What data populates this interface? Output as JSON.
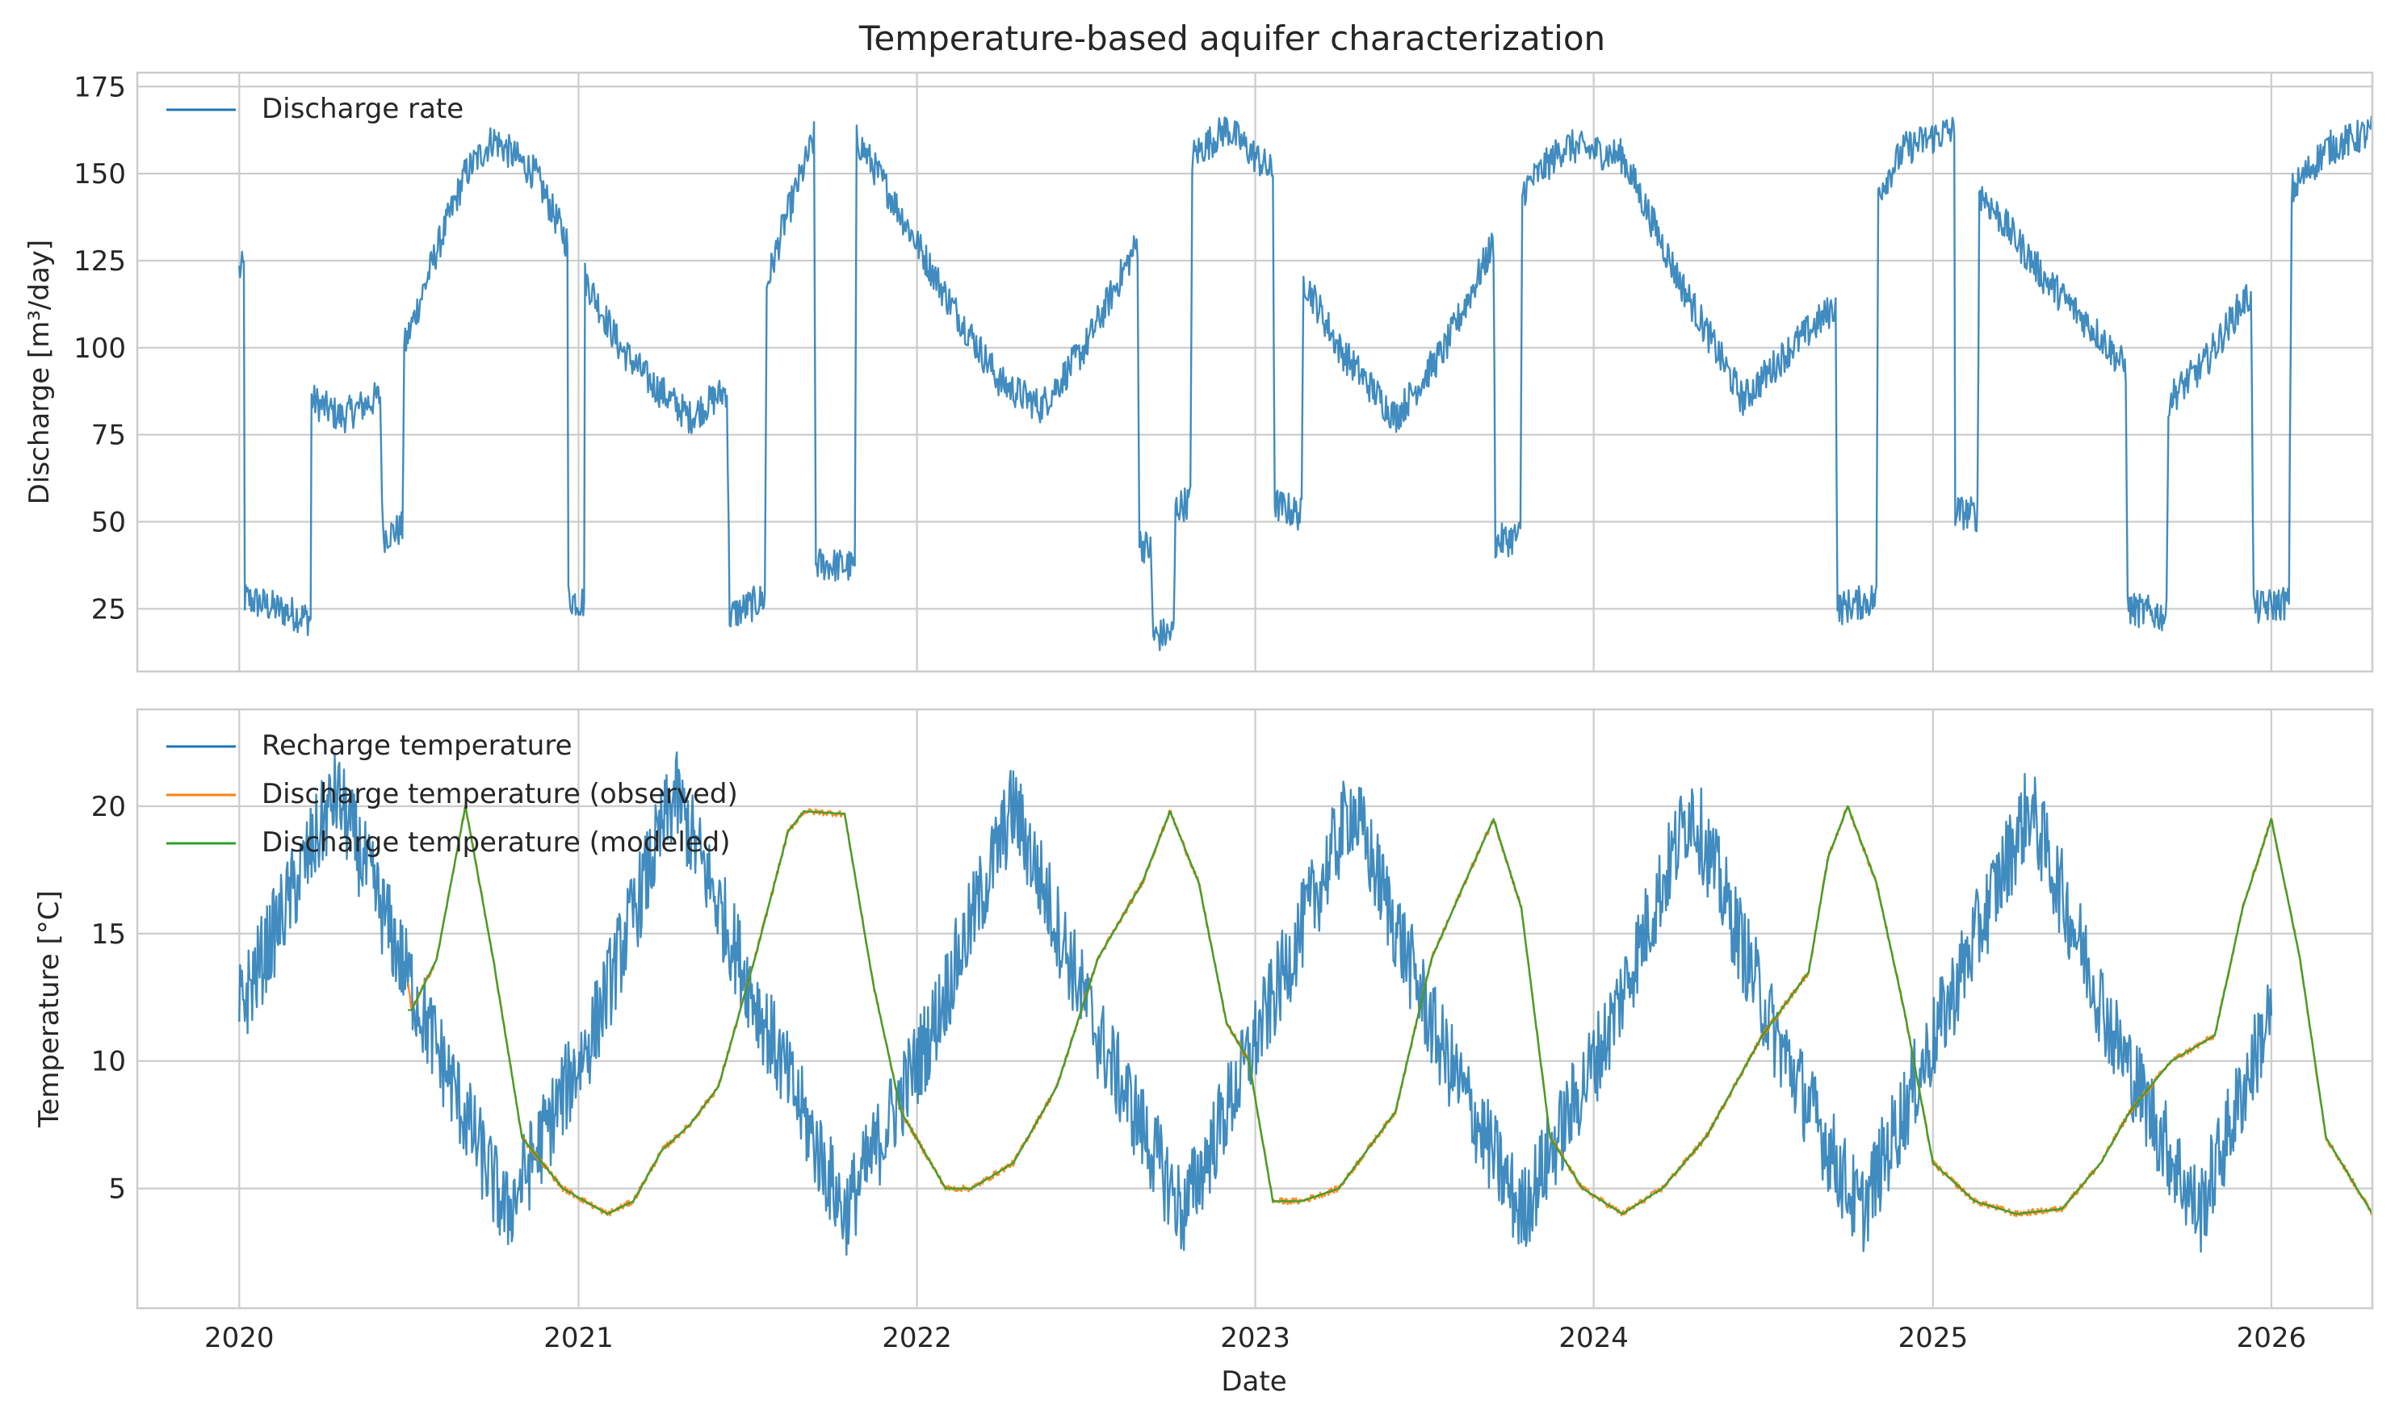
{
  "chart_data": [
    {
      "type": "line",
      "title": "Temperature-based aquifer characterization",
      "xlabel": "",
      "ylabel": "Discharge [m³/day]",
      "x_type": "date",
      "xlim": [
        "2019-09-13",
        "2026-04-20"
      ],
      "ylim": [
        7,
        179
      ],
      "xticks": [
        "2020-01-01",
        "2021-01-01",
        "2022-01-01",
        "2023-01-01",
        "2024-01-01",
        "2025-01-01",
        "2026-01-01"
      ],
      "xtick_labels": [
        "2020",
        "2021",
        "2022",
        "2023",
        "2024",
        "2025",
        "2026"
      ],
      "yticks": [
        25,
        50,
        75,
        100,
        125,
        150,
        175
      ],
      "grid": true,
      "legend_position": "top-left",
      "series": [
        {
          "name": "Discharge rate",
          "color": "#1f77b4",
          "noise": 5,
          "points": [
            [
              "2020-01-01",
              122
            ],
            [
              "2020-01-06",
              123
            ],
            [
              "2020-01-07",
              28
            ],
            [
              "2020-03-18",
              22
            ],
            [
              "2020-03-19",
              85
            ],
            [
              "2020-04-20",
              80
            ],
            [
              "2020-06-01",
              86
            ],
            [
              "2020-06-04",
              46
            ],
            [
              "2020-06-25",
              48
            ],
            [
              "2020-06-27",
              100
            ],
            [
              "2020-08-01",
              128
            ],
            [
              "2020-09-01",
              150
            ],
            [
              "2020-10-01",
              160
            ],
            [
              "2020-11-15",
              150
            ],
            [
              "2020-12-20",
              130
            ],
            [
              "2020-12-21",
              28
            ],
            [
              "2021-01-07",
              27
            ],
            [
              "2021-01-08",
              120
            ],
            [
              "2021-02-15",
              100
            ],
            [
              "2021-03-20",
              90
            ],
            [
              "2021-05-01",
              80
            ],
            [
              "2021-06-10",
              88
            ],
            [
              "2021-06-13",
              23
            ],
            [
              "2021-07-21",
              28
            ],
            [
              "2021-07-23",
              118
            ],
            [
              "2021-08-10",
              135
            ],
            [
              "2021-09-12",
              160
            ],
            [
              "2021-09-14",
              38
            ],
            [
              "2021-10-26",
              37
            ],
            [
              "2021-10-28",
              160
            ],
            [
              "2021-12-01",
              145
            ],
            [
              "2022-02-01",
              115
            ],
            [
              "2022-04-01",
              90
            ],
            [
              "2022-05-15",
              83
            ],
            [
              "2022-07-01",
              100
            ],
            [
              "2022-08-27",
              130
            ],
            [
              "2022-08-29",
              44
            ],
            [
              "2022-09-10",
              42
            ],
            [
              "2022-09-13",
              17
            ],
            [
              "2022-10-05",
              18
            ],
            [
              "2022-10-07",
              54
            ],
            [
              "2022-10-23",
              56
            ],
            [
              "2022-10-25",
              155
            ],
            [
              "2022-12-01",
              163
            ],
            [
              "2023-01-20",
              150
            ],
            [
              "2023-01-22",
              55
            ],
            [
              "2023-02-20",
              52
            ],
            [
              "2023-02-22",
              120
            ],
            [
              "2023-04-01",
              100
            ],
            [
              "2023-06-01",
              80
            ],
            [
              "2023-07-25",
              100
            ],
            [
              "2023-09-15",
              130
            ],
            [
              "2023-09-17",
              44
            ],
            [
              "2023-10-14",
              46
            ],
            [
              "2023-10-16",
              145
            ],
            [
              "2023-12-01",
              158
            ],
            [
              "2024-02-01",
              155
            ],
            [
              "2024-04-01",
              120
            ],
            [
              "2024-06-10",
              85
            ],
            [
              "2024-08-01",
              100
            ],
            [
              "2024-09-18",
              112
            ],
            [
              "2024-09-20",
              25
            ],
            [
              "2024-11-01",
              28
            ],
            [
              "2024-11-03",
              145
            ],
            [
              "2024-12-01",
              157
            ],
            [
              "2025-01-15",
              162
            ],
            [
              "2025-01-24",
              162
            ],
            [
              "2025-01-25",
              53
            ],
            [
              "2025-02-18",
              52
            ],
            [
              "2025-02-20",
              145
            ],
            [
              "2025-03-15",
              137
            ],
            [
              "2025-05-01",
              120
            ],
            [
              "2025-07-01",
              103
            ],
            [
              "2025-07-28",
              94
            ],
            [
              "2025-07-30",
              25
            ],
            [
              "2025-09-10",
              23
            ],
            [
              "2025-09-12",
              85
            ],
            [
              "2025-10-20",
              95
            ],
            [
              "2025-12-01",
              113
            ],
            [
              "2025-12-10",
              115
            ],
            [
              "2025-12-12",
              56
            ],
            [
              "2025-12-13",
              25
            ],
            [
              "2026-01-20",
              27
            ],
            [
              "2026-01-23",
              145
            ],
            [
              "2026-03-01",
              157
            ],
            [
              "2026-04-20",
              162
            ]
          ]
        }
      ]
    },
    {
      "type": "line",
      "title": "",
      "xlabel": "Date",
      "ylabel": "Temperature [°C]",
      "x_type": "date",
      "xlim": [
        "2019-09-13",
        "2026-04-20"
      ],
      "ylim": [
        0.3,
        23.8
      ],
      "xticks": [
        "2020-01-01",
        "2021-01-01",
        "2022-01-01",
        "2023-01-01",
        "2024-01-01",
        "2025-01-01",
        "2026-01-01"
      ],
      "xtick_labels": [
        "2020",
        "2021",
        "2022",
        "2023",
        "2024",
        "2025",
        "2026"
      ],
      "yticks": [
        5,
        10,
        15,
        20
      ],
      "grid": true,
      "legend_position": "top-left",
      "series": [
        {
          "name": "Recharge temperature",
          "color": "#1f77b4",
          "noise": 1.8,
          "points": [
            [
              "2020-01-01",
              12
            ],
            [
              "2020-04-15",
              20.5
            ],
            [
              "2020-07-15",
              12
            ],
            [
              "2020-10-15",
              4
            ],
            [
              "2021-01-15",
              11
            ],
            [
              "2021-04-15",
              20.5
            ],
            [
              "2021-07-15",
              12
            ],
            [
              "2021-10-15",
              4
            ],
            [
              "2022-01-15",
              11
            ],
            [
              "2022-04-15",
              20
            ],
            [
              "2022-07-15",
              11
            ],
            [
              "2022-10-15",
              4
            ],
            [
              "2023-01-15",
              12
            ],
            [
              "2023-04-15",
              20
            ],
            [
              "2023-07-15",
              11
            ],
            [
              "2023-10-15",
              4
            ],
            [
              "2024-01-15",
              11
            ],
            [
              "2024-04-15",
              20
            ],
            [
              "2024-07-15",
              11
            ],
            [
              "2024-10-15",
              4
            ],
            [
              "2025-01-15",
              12
            ],
            [
              "2025-04-15",
              20
            ],
            [
              "2025-07-15",
              11
            ],
            [
              "2025-10-15",
              4
            ],
            [
              "2026-01-01",
              12
            ]
          ]
        },
        {
          "name": "Discharge temperature (observed)",
          "color": "#ff7f0e",
          "noise": 0.12,
          "points": [
            [
              "2020-07-01",
              13
            ],
            [
              "2020-07-05",
              12
            ],
            [
              "2020-08-01",
              14
            ],
            [
              "2020-09-01",
              20
            ],
            [
              "2020-10-01",
              14
            ],
            [
              "2020-11-01",
              7
            ],
            [
              "2020-12-15",
              5
            ],
            [
              "2021-02-01",
              4
            ],
            [
              "2021-03-01",
              4.5
            ],
            [
              "2021-04-01",
              6.5
            ],
            [
              "2021-05-01",
              7.5
            ],
            [
              "2021-06-01",
              9
            ],
            [
              "2021-07-10",
              14
            ],
            [
              "2021-08-15",
              19
            ],
            [
              "2021-09-01",
              19.8
            ],
            [
              "2021-10-15",
              19.7
            ],
            [
              "2021-11-15",
              13
            ],
            [
              "2021-12-15",
              8
            ],
            [
              "2022-02-01",
              5
            ],
            [
              "2022-03-01",
              5
            ],
            [
              "2022-04-15",
              6
            ],
            [
              "2022-06-01",
              9
            ],
            [
              "2022-07-15",
              14
            ],
            [
              "2022-09-01",
              17
            ],
            [
              "2022-10-01",
              19.8
            ],
            [
              "2022-11-01",
              17
            ],
            [
              "2022-12-01",
              11.5
            ],
            [
              "2022-12-25",
              10
            ],
            [
              "2023-01-20",
              4.5
            ],
            [
              "2023-02-20",
              4.5
            ],
            [
              "2023-04-01",
              5
            ],
            [
              "2023-06-01",
              8
            ],
            [
              "2023-07-10",
              14
            ],
            [
              "2023-08-15",
              17
            ],
            [
              "2023-09-15",
              19.5
            ],
            [
              "2023-10-15",
              16
            ],
            [
              "2023-11-15",
              7
            ],
            [
              "2023-12-20",
              5
            ],
            [
              "2024-02-01",
              4
            ],
            [
              "2024-03-15",
              5
            ],
            [
              "2024-05-01",
              7
            ],
            [
              "2024-07-01",
              11
            ],
            [
              "2024-08-20",
              13.5
            ],
            [
              "2024-09-10",
              18
            ],
            [
              "2024-10-01",
              20
            ],
            [
              "2024-11-01",
              17
            ],
            [
              "2024-12-01",
              12
            ],
            [
              "2025-01-01",
              6
            ],
            [
              "2025-02-15",
              4.5
            ],
            [
              "2025-04-01",
              4
            ],
            [
              "2025-05-20",
              4.2
            ],
            [
              "2025-07-01",
              6
            ],
            [
              "2025-08-01",
              8
            ],
            [
              "2025-09-15",
              10
            ],
            [
              "2025-11-01",
              11
            ],
            [
              "2025-12-01",
              16
            ],
            [
              "2026-01-01",
              19.5
            ],
            [
              "2026-02-01",
              14
            ],
            [
              "2026-03-01",
              7
            ],
            [
              "2026-04-20",
              4
            ]
          ]
        },
        {
          "name": "Discharge temperature (modeled)",
          "color": "#2ca02c",
          "noise": 0,
          "points": [
            [
              "2020-07-01",
              12
            ],
            [
              "2020-07-05",
              12
            ],
            [
              "2020-08-01",
              14
            ],
            [
              "2020-09-01",
              20
            ],
            [
              "2020-10-01",
              14
            ],
            [
              "2020-11-01",
              7
            ],
            [
              "2020-12-15",
              5
            ],
            [
              "2021-02-01",
              4
            ],
            [
              "2021-03-01",
              4.5
            ],
            [
              "2021-04-01",
              6.5
            ],
            [
              "2021-05-01",
              7.5
            ],
            [
              "2021-06-01",
              9
            ],
            [
              "2021-07-10",
              14
            ],
            [
              "2021-08-15",
              19
            ],
            [
              "2021-09-01",
              19.8
            ],
            [
              "2021-10-15",
              19.7
            ],
            [
              "2021-11-15",
              13
            ],
            [
              "2021-12-15",
              8
            ],
            [
              "2022-02-01",
              5
            ],
            [
              "2022-03-01",
              5
            ],
            [
              "2022-04-15",
              6
            ],
            [
              "2022-06-01",
              9
            ],
            [
              "2022-07-15",
              14
            ],
            [
              "2022-09-01",
              17
            ],
            [
              "2022-10-01",
              19.8
            ],
            [
              "2022-11-01",
              17
            ],
            [
              "2022-12-01",
              11.5
            ],
            [
              "2022-12-25",
              10
            ],
            [
              "2023-01-20",
              4.5
            ],
            [
              "2023-02-20",
              4.5
            ],
            [
              "2023-04-01",
              5
            ],
            [
              "2023-06-01",
              8
            ],
            [
              "2023-07-10",
              14
            ],
            [
              "2023-08-15",
              17
            ],
            [
              "2023-09-15",
              19.5
            ],
            [
              "2023-10-15",
              16
            ],
            [
              "2023-11-15",
              7
            ],
            [
              "2023-12-20",
              5
            ],
            [
              "2024-02-01",
              4
            ],
            [
              "2024-03-15",
              5
            ],
            [
              "2024-05-01",
              7
            ],
            [
              "2024-07-01",
              11
            ],
            [
              "2024-08-20",
              13.5
            ],
            [
              "2024-09-10",
              18
            ],
            [
              "2024-10-01",
              20
            ],
            [
              "2024-11-01",
              17
            ],
            [
              "2024-12-01",
              12
            ],
            [
              "2025-01-01",
              6
            ],
            [
              "2025-02-15",
              4.5
            ],
            [
              "2025-04-01",
              4
            ],
            [
              "2025-05-20",
              4.2
            ],
            [
              "2025-07-01",
              6
            ],
            [
              "2025-08-01",
              8
            ],
            [
              "2025-09-15",
              10
            ],
            [
              "2025-11-01",
              11
            ],
            [
              "2025-12-01",
              16
            ],
            [
              "2026-01-01",
              19.5
            ],
            [
              "2026-02-01",
              14
            ],
            [
              "2026-03-01",
              7
            ],
            [
              "2026-04-20",
              4
            ]
          ]
        }
      ]
    }
  ]
}
